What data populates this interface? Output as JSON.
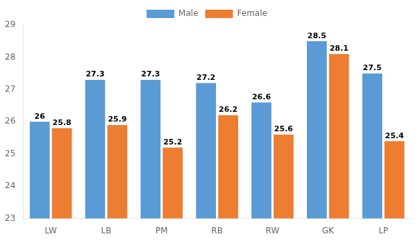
{
  "chart_data": {
    "type": "bar",
    "categories": [
      "LW",
      "LB",
      "PM",
      "RB",
      "RW",
      "GK",
      "LP"
    ],
    "series": [
      {
        "name": "Male",
        "color": "#5B9BD5",
        "values": [
          26.0,
          27.3,
          27.3,
          27.2,
          26.6,
          28.5,
          27.5
        ]
      },
      {
        "name": "Female",
        "color": "#ED7D31",
        "values": [
          25.8,
          25.9,
          25.2,
          26.2,
          25.6,
          28.1,
          25.4
        ]
      }
    ],
    "ylim": [
      23,
      29
    ],
    "yticks": [
      23,
      24,
      25,
      26,
      27,
      28,
      29
    ],
    "grid": false,
    "legend": "top",
    "data_labels": true
  }
}
